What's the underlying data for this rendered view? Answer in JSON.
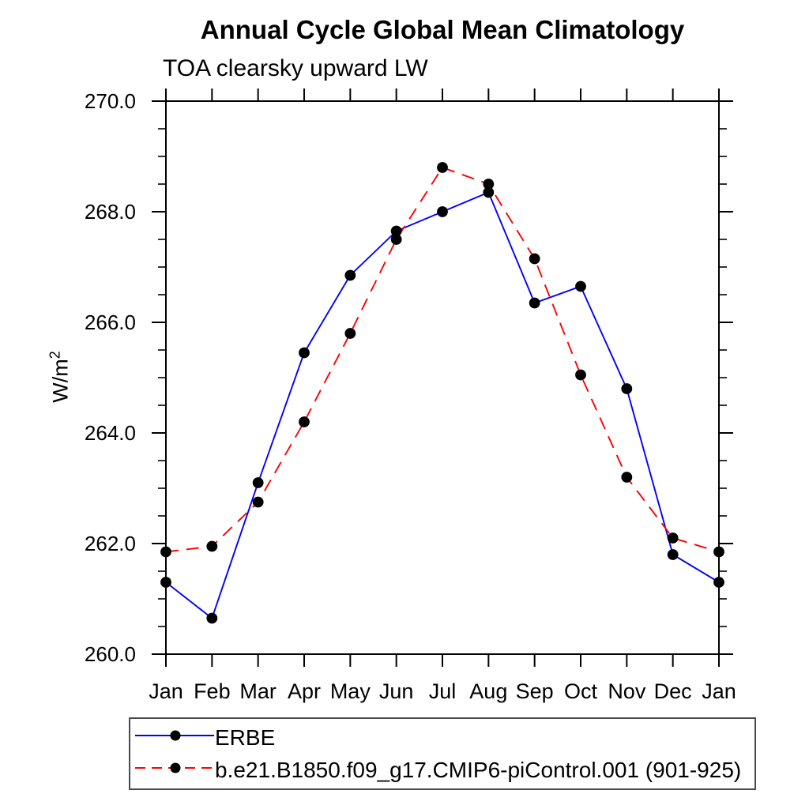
{
  "title": "Annual Cycle Global Mean Climatology",
  "subtitle": "TOA clearsky upward LW",
  "y_axis": {
    "label_base": "W/m",
    "label_exponent": "2"
  },
  "colors": {
    "erbe_line": "#0000ff",
    "model_line": "#ff0000",
    "marker": "#000000",
    "axis": "#000000",
    "legend_border": "#4a4a4a"
  },
  "chart_data": {
    "type": "line",
    "title": "Annual Cycle Global Mean Climatology",
    "subtitle": "TOA clearsky upward LW",
    "xlabel": "",
    "ylabel": "W/m^2",
    "categories": [
      "Jan",
      "Feb",
      "Mar",
      "Apr",
      "May",
      "Jun",
      "Jul",
      "Aug",
      "Sep",
      "Oct",
      "Nov",
      "Dec",
      "Jan"
    ],
    "ylim": [
      260.0,
      270.0
    ],
    "yticks": [
      260.0,
      262.0,
      264.0,
      266.0,
      268.0,
      270.0
    ],
    "ytick_labels": [
      "260.0",
      "262.0",
      "264.0",
      "266.0",
      "268.0",
      "270.0"
    ],
    "ytick_minor_step": 0.5,
    "grid": false,
    "frame": true,
    "legend_position": "bottom-left-boxed",
    "series": [
      {
        "name": "ERBE",
        "color": "#0000ff",
        "line_style": "solid",
        "marker": "filled-circle",
        "marker_color": "#000000",
        "values": [
          261.3,
          260.65,
          263.1,
          265.45,
          266.85,
          267.65,
          268.0,
          268.35,
          266.35,
          266.65,
          264.8,
          261.8,
          261.3
        ]
      },
      {
        "name": "b.e21.B1850.f09_g17.CMIP6-piControl.001 (901-925)",
        "color": "#ff0000",
        "line_style": "dashed",
        "marker": "filled-circle",
        "marker_color": "#000000",
        "values": [
          261.85,
          261.95,
          262.75,
          264.2,
          265.8,
          267.5,
          268.8,
          268.5,
          267.15,
          265.05,
          263.2,
          262.1,
          261.85
        ]
      }
    ]
  }
}
